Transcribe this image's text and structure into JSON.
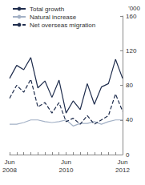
{
  "chart_data": {
    "type": "line",
    "y_label": "'000",
    "categories": [
      "Jun\n2008",
      null,
      null,
      null,
      null,
      null,
      null,
      null,
      "Jun\n2010",
      null,
      null,
      null,
      null,
      null,
      null,
      null,
      "Jun\n2012"
    ],
    "series": [
      {
        "name": "Total growth",
        "color": "#1f2d4d",
        "line_style": "solid",
        "values": [
          88,
          103,
          98,
          112,
          77,
          85,
          66,
          86,
          48,
          62,
          52,
          82,
          58,
          78,
          82,
          110,
          88
        ]
      },
      {
        "name": "Natural increase",
        "color": "#a3b1c6",
        "line_style": "solid",
        "values": [
          35,
          35,
          37,
          40,
          40,
          38,
          37,
          38,
          40,
          33,
          36,
          36,
          38,
          35,
          38,
          40,
          40
        ]
      },
      {
        "name": "Net overseas migration",
        "color": "#1f2d4d",
        "line_style": "dashed",
        "values": [
          65,
          80,
          72,
          87,
          55,
          60,
          48,
          60,
          38,
          42,
          35,
          45,
          35,
          40,
          45,
          70,
          50
        ]
      }
    ],
    "ylim": [
      0,
      160
    ],
    "yticks": [
      0,
      40,
      80,
      120,
      160
    ],
    "grid": false,
    "legend": "top-left"
  }
}
